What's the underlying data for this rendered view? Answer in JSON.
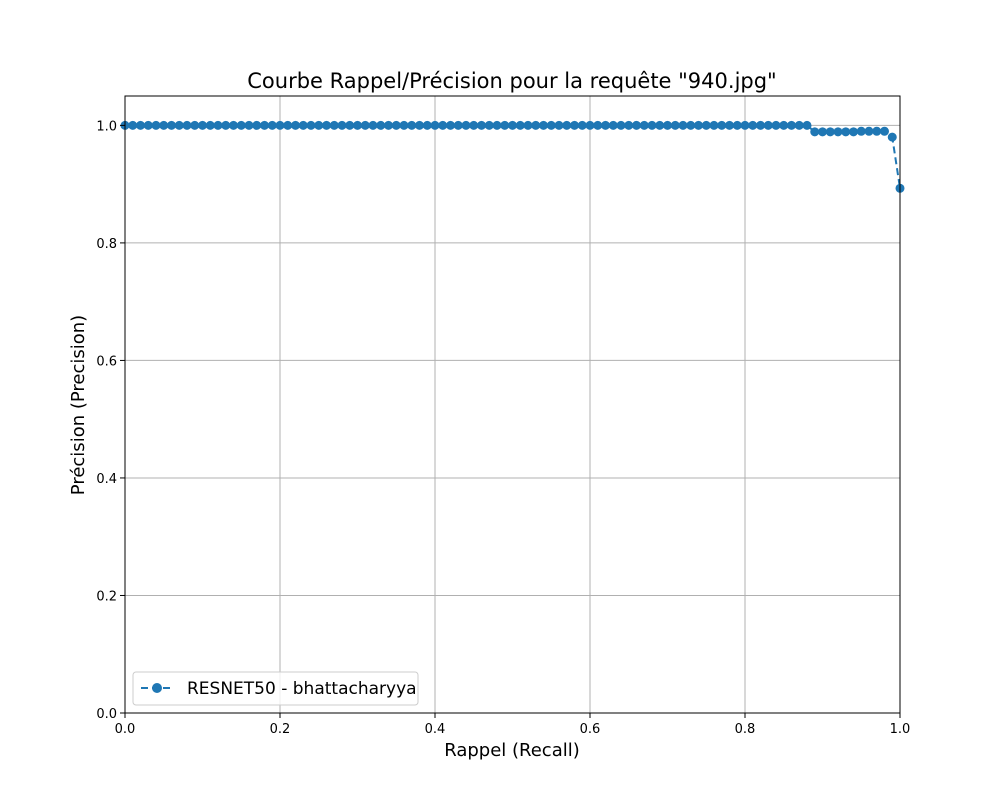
{
  "chart_data": {
    "type": "line",
    "title": "Courbe Rappel/Précision pour la requête \"940.jpg\"",
    "xlabel": "Rappel (Recall)",
    "ylabel": "Précision (Precision)",
    "xlim": [
      0,
      1
    ],
    "ylim": [
      0,
      1.05
    ],
    "xticks": [
      0,
      0.2,
      0.4,
      0.6,
      0.8,
      1.0
    ],
    "xtick_labels": [
      "0.0",
      "0.2",
      "0.4",
      "0.6",
      "0.8",
      "1.0"
    ],
    "yticks": [
      0,
      0.2,
      0.4,
      0.6,
      0.8,
      1.0
    ],
    "ytick_labels": [
      "0.0",
      "0.2",
      "0.4",
      "0.6",
      "0.8",
      "1.0"
    ],
    "grid": true,
    "legend_position": "lower-left",
    "series": [
      {
        "name": "RESNET50 - bhattacharyya",
        "color": "#1f77b4",
        "line_style": "dashed",
        "marker": "circle",
        "points": [
          [
            0.0,
            1.0
          ],
          [
            0.01,
            1.0
          ],
          [
            0.02,
            1.0
          ],
          [
            0.03,
            1.0
          ],
          [
            0.04,
            1.0
          ],
          [
            0.05,
            1.0
          ],
          [
            0.06,
            1.0
          ],
          [
            0.07,
            1.0
          ],
          [
            0.08,
            1.0
          ],
          [
            0.09,
            1.0
          ],
          [
            0.1,
            1.0
          ],
          [
            0.11,
            1.0
          ],
          [
            0.12,
            1.0
          ],
          [
            0.13,
            1.0
          ],
          [
            0.14,
            1.0
          ],
          [
            0.15,
            1.0
          ],
          [
            0.16,
            1.0
          ],
          [
            0.17,
            1.0
          ],
          [
            0.18,
            1.0
          ],
          [
            0.19,
            1.0
          ],
          [
            0.2,
            1.0
          ],
          [
            0.21,
            1.0
          ],
          [
            0.22,
            1.0
          ],
          [
            0.23,
            1.0
          ],
          [
            0.24,
            1.0
          ],
          [
            0.25,
            1.0
          ],
          [
            0.26,
            1.0
          ],
          [
            0.27,
            1.0
          ],
          [
            0.28,
            1.0
          ],
          [
            0.29,
            1.0
          ],
          [
            0.3,
            1.0
          ],
          [
            0.31,
            1.0
          ],
          [
            0.32,
            1.0
          ],
          [
            0.33,
            1.0
          ],
          [
            0.34,
            1.0
          ],
          [
            0.35,
            1.0
          ],
          [
            0.36,
            1.0
          ],
          [
            0.37,
            1.0
          ],
          [
            0.38,
            1.0
          ],
          [
            0.39,
            1.0
          ],
          [
            0.4,
            1.0
          ],
          [
            0.41,
            1.0
          ],
          [
            0.42,
            1.0
          ],
          [
            0.43,
            1.0
          ],
          [
            0.44,
            1.0
          ],
          [
            0.45,
            1.0
          ],
          [
            0.46,
            1.0
          ],
          [
            0.47,
            1.0
          ],
          [
            0.48,
            1.0
          ],
          [
            0.49,
            1.0
          ],
          [
            0.5,
            1.0
          ],
          [
            0.51,
            1.0
          ],
          [
            0.52,
            1.0
          ],
          [
            0.53,
            1.0
          ],
          [
            0.54,
            1.0
          ],
          [
            0.55,
            1.0
          ],
          [
            0.56,
            1.0
          ],
          [
            0.57,
            1.0
          ],
          [
            0.58,
            1.0
          ],
          [
            0.59,
            1.0
          ],
          [
            0.6,
            1.0
          ],
          [
            0.61,
            1.0
          ],
          [
            0.62,
            1.0
          ],
          [
            0.63,
            1.0
          ],
          [
            0.64,
            1.0
          ],
          [
            0.65,
            1.0
          ],
          [
            0.66,
            1.0
          ],
          [
            0.67,
            1.0
          ],
          [
            0.68,
            1.0
          ],
          [
            0.69,
            1.0
          ],
          [
            0.7,
            1.0
          ],
          [
            0.71,
            1.0
          ],
          [
            0.72,
            1.0
          ],
          [
            0.73,
            1.0
          ],
          [
            0.74,
            1.0
          ],
          [
            0.75,
            1.0
          ],
          [
            0.76,
            1.0
          ],
          [
            0.77,
            1.0
          ],
          [
            0.78,
            1.0
          ],
          [
            0.79,
            1.0
          ],
          [
            0.8,
            1.0
          ],
          [
            0.81,
            1.0
          ],
          [
            0.82,
            1.0
          ],
          [
            0.83,
            1.0
          ],
          [
            0.84,
            1.0
          ],
          [
            0.85,
            1.0
          ],
          [
            0.86,
            1.0
          ],
          [
            0.87,
            1.0
          ],
          [
            0.88,
            1.0
          ],
          [
            0.89,
            0.989
          ],
          [
            0.9,
            0.989
          ],
          [
            0.91,
            0.989
          ],
          [
            0.92,
            0.989
          ],
          [
            0.93,
            0.989
          ],
          [
            0.94,
            0.989
          ],
          [
            0.95,
            0.99
          ],
          [
            0.96,
            0.99
          ],
          [
            0.97,
            0.99
          ],
          [
            0.98,
            0.99
          ],
          [
            0.99,
            0.98
          ],
          [
            1.0,
            0.893
          ]
        ]
      }
    ]
  }
}
